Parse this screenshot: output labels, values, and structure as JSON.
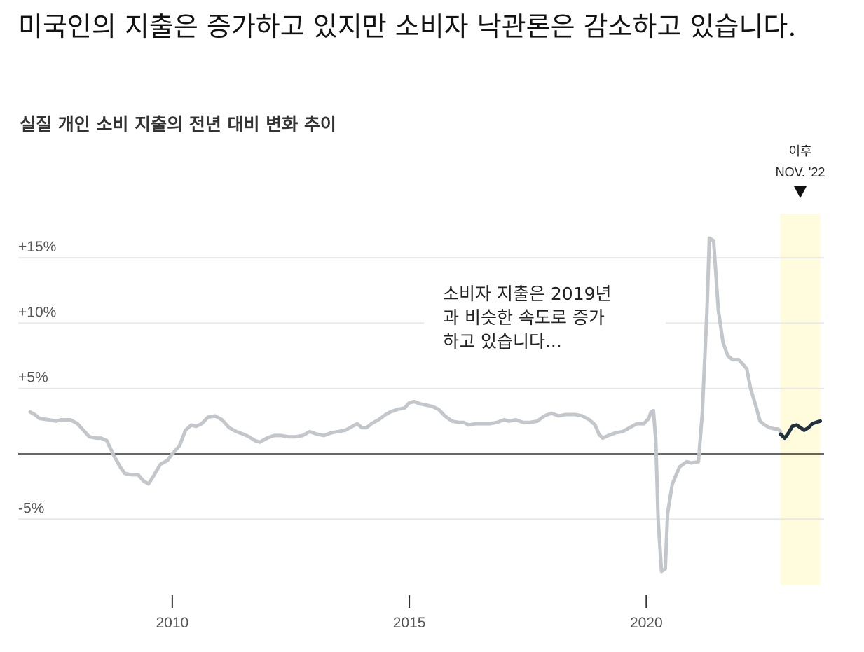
{
  "headline": "미국인의 지출은 증가하고 있지만 소비자 낙관론은 감소하고 있습니다.",
  "chart_data": {
    "type": "line",
    "title": "실질 개인 소비 지출의 전년 대비 변화 추이",
    "xlabel": "",
    "ylabel": "",
    "ylim": [
      -11,
      17
    ],
    "xlim": [
      2006.75,
      2023.75
    ],
    "y_ticks": [
      {
        "value": 15,
        "label": "+15%"
      },
      {
        "value": 10,
        "label": "+10%"
      },
      {
        "value": 5,
        "label": "+5%"
      },
      {
        "value": -5,
        "label": "-5%"
      }
    ],
    "x_ticks": [
      {
        "value": 2010,
        "label": "2010"
      },
      {
        "value": 2015,
        "label": "2015"
      },
      {
        "value": 2020,
        "label": "2020"
      }
    ],
    "grid": true,
    "colors": {
      "before": "#c3c7cc",
      "after": "#22303f",
      "highlight": "#fefcdc",
      "zero_line": "#333333",
      "grid": "#e8e8e8"
    },
    "highlight": {
      "start": 2022.83,
      "end": 2023.67
    },
    "annotation_after": {
      "line1": "이후",
      "line2": "NOV. '22",
      "marker": "▼"
    },
    "annotation_note": [
      "소비자 지출은 2019년",
      "과 비슷한 속도로 증가",
      "하고 있습니다..."
    ],
    "series": [
      {
        "values": [
          [
            2007.0,
            3.2
          ],
          [
            2007.1,
            3.0
          ],
          [
            2007.2,
            2.7
          ],
          [
            2007.4,
            2.6
          ],
          [
            2007.55,
            2.5
          ],
          [
            2007.65,
            2.6
          ],
          [
            2007.85,
            2.6
          ],
          [
            2008.0,
            2.3
          ],
          [
            2008.1,
            1.9
          ],
          [
            2008.25,
            1.3
          ],
          [
            2008.4,
            1.2
          ],
          [
            2008.5,
            1.2
          ],
          [
            2008.62,
            1.0
          ],
          [
            2008.75,
            0.0
          ],
          [
            2008.9,
            -1.0
          ],
          [
            2009.0,
            -1.5
          ],
          [
            2009.15,
            -1.6
          ],
          [
            2009.28,
            -1.6
          ],
          [
            2009.4,
            -2.1
          ],
          [
            2009.5,
            -2.3
          ],
          [
            2009.62,
            -1.6
          ],
          [
            2009.75,
            -0.8
          ],
          [
            2009.9,
            -0.5
          ],
          [
            2010.0,
            0.0
          ],
          [
            2010.15,
            0.6
          ],
          [
            2010.28,
            1.8
          ],
          [
            2010.4,
            2.2
          ],
          [
            2010.5,
            2.1
          ],
          [
            2010.62,
            2.3
          ],
          [
            2010.75,
            2.8
          ],
          [
            2010.9,
            2.9
          ],
          [
            2011.05,
            2.6
          ],
          [
            2011.2,
            2.0
          ],
          [
            2011.35,
            1.7
          ],
          [
            2011.5,
            1.5
          ],
          [
            2011.62,
            1.3
          ],
          [
            2011.75,
            1.0
          ],
          [
            2011.85,
            0.9
          ],
          [
            2012.0,
            1.2
          ],
          [
            2012.15,
            1.4
          ],
          [
            2012.3,
            1.4
          ],
          [
            2012.45,
            1.3
          ],
          [
            2012.6,
            1.3
          ],
          [
            2012.75,
            1.4
          ],
          [
            2012.9,
            1.7
          ],
          [
            2013.05,
            1.5
          ],
          [
            2013.2,
            1.4
          ],
          [
            2013.35,
            1.6
          ],
          [
            2013.5,
            1.7
          ],
          [
            2013.65,
            1.8
          ],
          [
            2013.8,
            2.1
          ],
          [
            2013.9,
            2.3
          ],
          [
            2014.0,
            2.0
          ],
          [
            2014.1,
            2.0
          ],
          [
            2014.2,
            2.3
          ],
          [
            2014.35,
            2.6
          ],
          [
            2014.5,
            3.0
          ],
          [
            2014.6,
            3.2
          ],
          [
            2014.75,
            3.4
          ],
          [
            2014.9,
            3.5
          ],
          [
            2015.0,
            3.9
          ],
          [
            2015.1,
            4.0
          ],
          [
            2015.25,
            3.8
          ],
          [
            2015.4,
            3.7
          ],
          [
            2015.5,
            3.6
          ],
          [
            2015.62,
            3.4
          ],
          [
            2015.75,
            2.9
          ],
          [
            2015.9,
            2.5
          ],
          [
            2016.05,
            2.4
          ],
          [
            2016.15,
            2.4
          ],
          [
            2016.25,
            2.2
          ],
          [
            2016.4,
            2.3
          ],
          [
            2016.55,
            2.3
          ],
          [
            2016.7,
            2.3
          ],
          [
            2016.85,
            2.4
          ],
          [
            2017.0,
            2.6
          ],
          [
            2017.1,
            2.5
          ],
          [
            2017.25,
            2.6
          ],
          [
            2017.4,
            2.4
          ],
          [
            2017.55,
            2.4
          ],
          [
            2017.7,
            2.5
          ],
          [
            2017.85,
            2.9
          ],
          [
            2018.0,
            3.1
          ],
          [
            2018.15,
            2.9
          ],
          [
            2018.3,
            3.0
          ],
          [
            2018.5,
            3.0
          ],
          [
            2018.65,
            2.9
          ],
          [
            2018.8,
            2.6
          ],
          [
            2018.92,
            2.2
          ],
          [
            2019.0,
            1.5
          ],
          [
            2019.08,
            1.2
          ],
          [
            2019.2,
            1.4
          ],
          [
            2019.35,
            1.6
          ],
          [
            2019.5,
            1.7
          ],
          [
            2019.65,
            2.0
          ],
          [
            2019.8,
            2.3
          ],
          [
            2019.95,
            2.3
          ],
          [
            2020.05,
            2.7
          ],
          [
            2020.1,
            3.2
          ],
          [
            2020.15,
            3.3
          ],
          [
            2020.2,
            1.0
          ],
          [
            2020.25,
            -5.0
          ],
          [
            2020.32,
            -9.0
          ],
          [
            2020.4,
            -8.8
          ],
          [
            2020.45,
            -4.5
          ],
          [
            2020.55,
            -2.3
          ],
          [
            2020.7,
            -1.0
          ],
          [
            2020.85,
            -0.6
          ],
          [
            2020.95,
            -0.7
          ],
          [
            2021.1,
            -0.6
          ],
          [
            2021.18,
            3.0
          ],
          [
            2021.28,
            11.0
          ],
          [
            2021.33,
            16.5
          ],
          [
            2021.42,
            16.3
          ],
          [
            2021.52,
            11.0
          ],
          [
            2021.62,
            8.5
          ],
          [
            2021.72,
            7.5
          ],
          [
            2021.82,
            7.2
          ],
          [
            2021.95,
            7.2
          ],
          [
            2022.05,
            6.8
          ],
          [
            2022.12,
            6.5
          ],
          [
            2022.2,
            5.0
          ],
          [
            2022.3,
            3.8
          ],
          [
            2022.4,
            2.5
          ],
          [
            2022.5,
            2.2
          ],
          [
            2022.6,
            2.0
          ],
          [
            2022.7,
            1.9
          ],
          [
            2022.78,
            1.9
          ],
          [
            2022.83,
            1.7
          ]
        ]
      },
      {
        "values": [
          [
            2022.83,
            1.5
          ],
          [
            2022.92,
            1.2
          ],
          [
            2023.0,
            1.6
          ],
          [
            2023.08,
            2.1
          ],
          [
            2023.17,
            2.2
          ],
          [
            2023.25,
            2.0
          ],
          [
            2023.33,
            1.8
          ],
          [
            2023.42,
            2.0
          ],
          [
            2023.5,
            2.3
          ],
          [
            2023.58,
            2.4
          ],
          [
            2023.67,
            2.5
          ]
        ]
      }
    ]
  }
}
